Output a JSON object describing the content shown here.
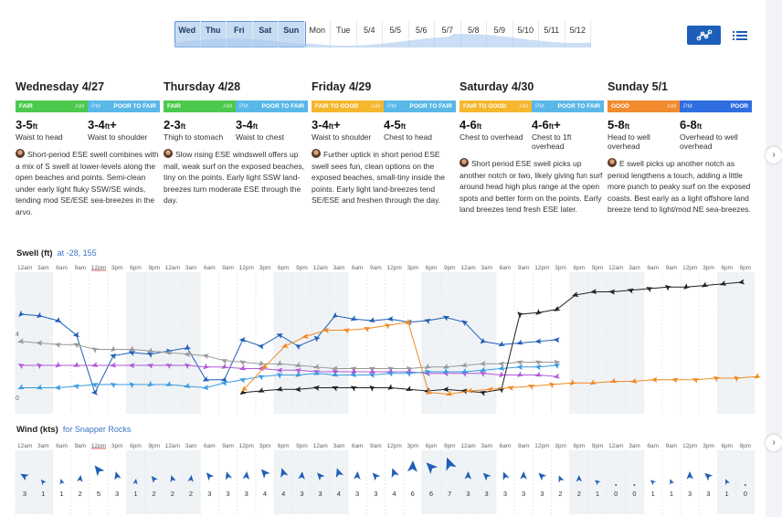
{
  "daybar": {
    "days": [
      "Wed",
      "Thu",
      "Fri",
      "Sat",
      "Sun",
      "Mon",
      "Tue",
      "5/4",
      "5/5",
      "5/6",
      "5/7",
      "5/8",
      "5/9",
      "5/10",
      "5/11",
      "5/12"
    ]
  },
  "view": {
    "chart_icon": "chart-icon",
    "list_icon": "list-icon"
  },
  "days": [
    {
      "title": "Wednesday 4/27",
      "am": "FAIR",
      "am_half": "AM",
      "pm": "POOR TO FAIR",
      "pm_half": "PM",
      "am_color": "#4cc94c",
      "pm_color": "#59b8e8",
      "am_height": "3-5",
      "am_height_unit": "ft",
      "am_plus": "",
      "am_desc": "Waist to head",
      "pm_height": "3-4",
      "pm_height_unit": "ft",
      "pm_plus": "+",
      "pm_desc": "Waist to shoulder",
      "report": "Short-period ESE swell combines with a mix of S swell at lower-levels along the open beaches and points. Semi-clean under early light fluky SSW/SE winds, tending mod SE/ESE sea-breezes in the arvo."
    },
    {
      "title": "Thursday 4/28",
      "am": "FAIR",
      "am_half": "AM",
      "pm": "POOR TO FAIR",
      "pm_half": "PM",
      "am_color": "#4cc94c",
      "pm_color": "#59b8e8",
      "am_height": "2-3",
      "am_height_unit": "ft",
      "am_plus": "",
      "am_desc": "Thigh to stomach",
      "pm_height": "3-4",
      "pm_height_unit": "ft",
      "pm_plus": "",
      "pm_desc": "Waist to chest",
      "report": "Slow rising ESE windswell offers up mall, weak surf on the exposed beaches, tiny on the points. Early light SSW land-breezes turn moderate ESE through the day."
    },
    {
      "title": "Friday 4/29",
      "am": "FAIR TO GOOD",
      "am_half": "AM",
      "pm": "POOR TO FAIR",
      "pm_half": "PM",
      "am_color": "#f5b72e",
      "pm_color": "#59b8e8",
      "am_height": "3-4",
      "am_height_unit": "ft",
      "am_plus": "+",
      "am_desc": "Waist to shoulder",
      "pm_height": "4-5",
      "pm_height_unit": "ft",
      "pm_plus": "",
      "pm_desc": "Chest to head",
      "report": "Further uptick in short period ESE swell sees fun, clean options on the exposed beaches, small-tiny inside the points. Early light land-breezes tend SE/ESE and freshen through the day."
    },
    {
      "title": "Saturday 4/30",
      "am": "FAIR TO GOOD",
      "am_half": "AM",
      "pm": "POOR TO FAIR",
      "pm_half": "PM",
      "am_color": "#f5b72e",
      "pm_color": "#59b8e8",
      "am_height": "4-6",
      "am_height_unit": "ft",
      "am_plus": "",
      "am_desc": "Chest to overhead",
      "pm_height": "4-6",
      "pm_height_unit": "ft",
      "pm_plus": "+",
      "pm_desc": "Chest to 1ft overhead",
      "report": "Short period ESE swell picks up another notch or two, likely giving fun surf around head high plus range at the open spots and better form on the points. Early land breezes tend fresh ESE later."
    },
    {
      "title": "Sunday 5/1",
      "am": "GOOD",
      "am_half": "AM",
      "pm": "POOR",
      "pm_half": "PM",
      "am_color": "#f28a2e",
      "pm_color": "#2f6ee0",
      "am_height": "5-8",
      "am_height_unit": "ft",
      "am_plus": "",
      "am_desc": "Head to well overhead",
      "pm_height": "6-8",
      "pm_height_unit": "ft",
      "pm_plus": "",
      "pm_desc": "Overhead to well overhead",
      "report": "E swell picks up another notch as period lengthens a touch, adding a little more punch to peaky surf on the exposed coasts. Best early as a light offshore land breeze tend to light/mod NE sea-breezes."
    }
  ],
  "swell": {
    "title": "Swell (ft)",
    "location": "at -28, 155",
    "y_tick_4": "4",
    "y_tick_0": "0"
  },
  "wind": {
    "title": "Wind (kts)",
    "location": "for Snapper Rocks"
  },
  "time_labels": [
    "12am",
    "3am",
    "6am",
    "9am",
    "12pm",
    "3pm",
    "6pm",
    "9pm"
  ],
  "chart_data": {
    "type": "line",
    "swell_series": [
      {
        "color": "#1f5fb5",
        "values": [
          5.2,
          5.1,
          4.8,
          3.9,
          0.3,
          2.6,
          2.8,
          2.7,
          2.9,
          3.1,
          1.1,
          1.1,
          3.6,
          3.2,
          3.9,
          3.2,
          3.7,
          5.1,
          4.9,
          4.8,
          4.9,
          4.7,
          4.8,
          5.0,
          4.7,
          3.5,
          3.3,
          3.4,
          3.5,
          3.6
        ]
      },
      {
        "color": "#999999",
        "values": [
          3.5,
          3.4,
          3.3,
          3.3,
          3.0,
          3.0,
          3.0,
          2.9,
          2.8,
          2.7,
          2.6,
          2.3,
          2.2,
          2.1,
          2.1,
          2.0,
          1.9,
          1.8,
          1.8,
          1.8,
          1.8,
          1.8,
          1.9,
          1.9,
          2.0,
          2.1,
          2.1,
          2.2,
          2.2,
          2.2
        ]
      },
      {
        "color": "#b15ad6",
        "values": [
          2.0,
          2.0,
          2.0,
          2.0,
          2.0,
          2.0,
          2.0,
          2.0,
          2.0,
          2.0,
          1.9,
          1.9,
          1.8,
          1.8,
          1.7,
          1.7,
          1.6,
          1.6,
          1.6,
          1.6,
          1.6,
          1.6,
          1.5,
          1.5,
          1.5,
          1.5,
          1.4,
          1.4,
          1.4,
          1.3
        ]
      },
      {
        "color": "#3a9be0",
        "values": [
          0.6,
          0.6,
          0.6,
          0.7,
          0.8,
          0.8,
          0.8,
          0.8,
          0.8,
          0.7,
          0.6,
          0.9,
          1.1,
          1.3,
          1.4,
          1.4,
          1.5,
          1.4,
          1.4,
          1.4,
          1.5,
          1.5,
          1.6,
          1.6,
          1.6,
          1.7,
          1.8,
          1.9,
          1.9,
          2.0
        ]
      },
      {
        "color": "#222222",
        "values": [
          0,
          0,
          0,
          0,
          0,
          0,
          0,
          0,
          0,
          0,
          0,
          0,
          0.3,
          0.4,
          0.5,
          0.5,
          0.6,
          0.6,
          0.6,
          0.6,
          0.6,
          0.5,
          0.4,
          0.5,
          0.4,
          0.3,
          0.5,
          5.2,
          5.3,
          5.5,
          6.4,
          6.6,
          6.6,
          6.7,
          6.8,
          6.9,
          6.9,
          7.0,
          7.1,
          7.2
        ]
      },
      {
        "color": "#f08a24",
        "values": [
          0.5,
          1.9,
          3.2,
          3.8,
          4.2,
          4.2,
          4.3,
          4.5,
          4.7,
          0.3,
          0.2,
          0.4,
          0.5,
          0.6,
          0.7,
          0.8,
          0.9,
          0.9,
          1.0,
          1.0,
          1.1,
          1.1,
          1.1,
          1.2,
          1.2,
          1.3
        ]
      }
    ],
    "wind_speeds": [
      3,
      1,
      1,
      2,
      5,
      3,
      1,
      2,
      2,
      2,
      3,
      3,
      3,
      4,
      4,
      3,
      3,
      4,
      3,
      3,
      4,
      6,
      6,
      7,
      3,
      3,
      3,
      3,
      3,
      2,
      2,
      1,
      0,
      0,
      1,
      1,
      3,
      3,
      1,
      0
    ]
  }
}
